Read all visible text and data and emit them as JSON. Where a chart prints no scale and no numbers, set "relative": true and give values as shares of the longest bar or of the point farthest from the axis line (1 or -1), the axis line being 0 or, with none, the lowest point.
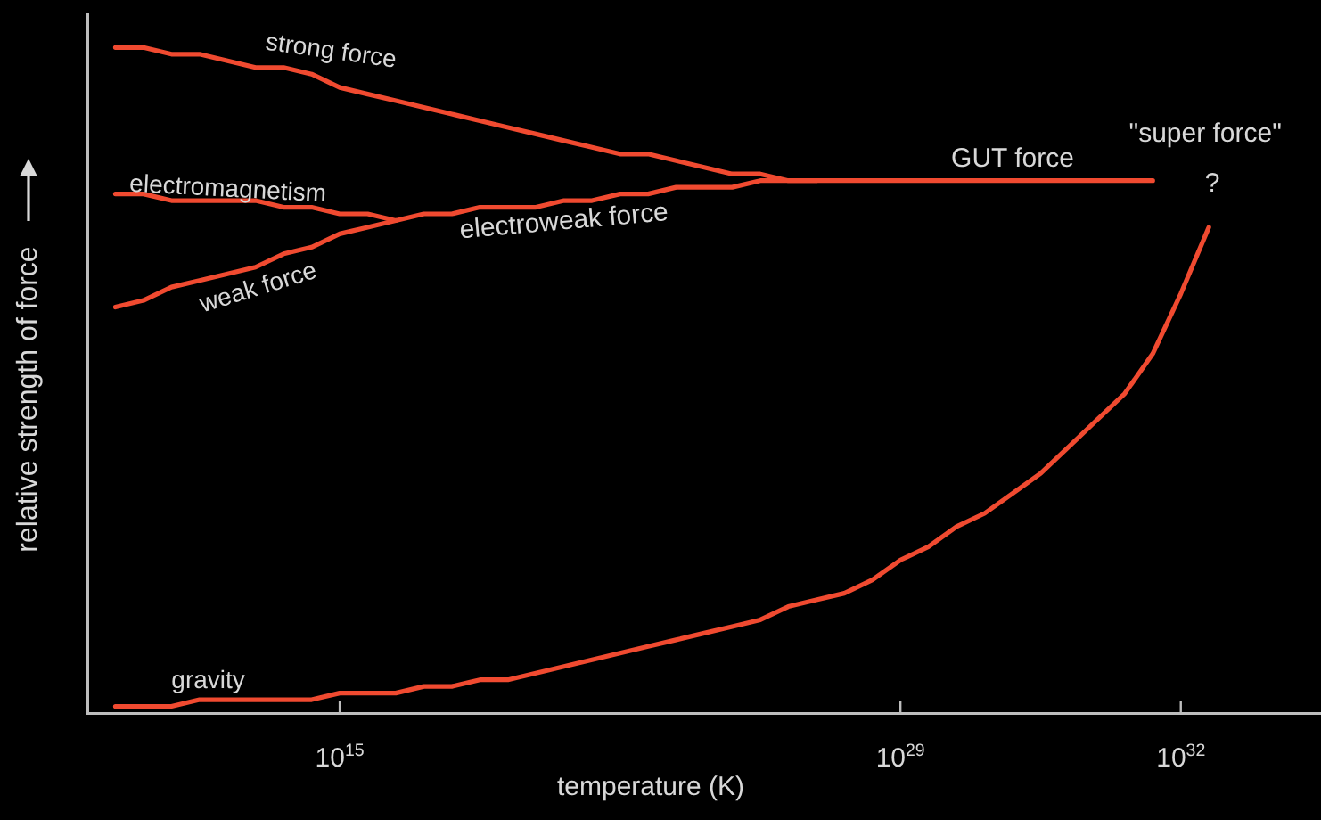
{
  "chart_data": {
    "type": "line",
    "relative": true,
    "xlabel": "temperature (K)",
    "ylabel": "relative strength of force",
    "legend": false,
    "grid": false,
    "tick_labels": "x",
    "categories": [
      null,
      null,
      null,
      null,
      null,
      null,
      null,
      null,
      null,
      "10$^{15}$",
      null,
      null,
      null,
      null,
      null,
      null,
      null,
      null,
      null,
      null,
      null,
      null,
      null,
      null,
      null,
      null,
      null,
      null,
      null,
      "10$^{29}$",
      null,
      null,
      null,
      null,
      null,
      null,
      null,
      null,
      null,
      "10$^{32}$",
      null,
      null,
      null,
      null,
      null
    ],
    "series": [
      {
        "name": "strong force",
        "color": "#f04a30",
        "values": [
          null,
          1.0,
          1.0,
          0.99,
          0.99,
          0.98,
          0.97,
          0.97,
          0.96,
          0.94,
          0.93,
          0.92,
          0.91,
          0.9,
          0.89,
          0.88,
          0.87,
          0.86,
          0.85,
          0.84,
          0.84,
          0.83,
          0.82,
          0.81,
          0.81,
          0.8,
          0.8,
          0.8,
          0.8,
          0.8,
          0.8,
          0.8,
          0.8,
          0.8,
          0.8,
          0.8,
          0.8,
          0.8,
          0.8,
          null,
          null,
          null,
          null,
          null,
          null
        ]
      },
      {
        "name": "electromagnetism",
        "color": "#f04a30",
        "values": [
          null,
          0.78,
          0.78,
          0.77,
          0.77,
          0.77,
          0.77,
          0.76,
          0.76,
          0.75,
          0.75,
          0.74,
          0.75,
          0.75,
          0.76,
          0.76,
          0.76,
          0.77,
          0.77,
          0.78,
          0.78,
          0.79,
          0.79,
          0.79,
          0.8,
          0.8,
          0.8,
          null,
          null,
          null,
          null,
          null,
          null,
          null,
          null,
          null,
          null,
          null,
          null,
          null,
          null,
          null,
          null,
          null,
          null
        ]
      },
      {
        "name": "weak force",
        "color": "#f04a30",
        "values": [
          null,
          0.61,
          0.62,
          0.64,
          0.65,
          0.66,
          0.67,
          0.69,
          0.7,
          0.72,
          0.73,
          0.74,
          null,
          null,
          null,
          null,
          null,
          null,
          null,
          null,
          null,
          null,
          null,
          null,
          null,
          null,
          null,
          null,
          null,
          null,
          null,
          null,
          null,
          null,
          null,
          null,
          null,
          null,
          null,
          null,
          null,
          null,
          null,
          null,
          null
        ]
      },
      {
        "name": "gravity",
        "color": "#f04a30",
        "values": [
          null,
          0.01,
          0.01,
          0.01,
          0.02,
          0.02,
          0.02,
          0.02,
          0.02,
          0.03,
          0.03,
          0.03,
          0.04,
          0.04,
          0.05,
          0.05,
          0.06,
          0.07,
          0.08,
          0.09,
          0.1,
          0.11,
          0.12,
          0.13,
          0.14,
          0.16,
          0.17,
          0.18,
          0.2,
          0.23,
          0.25,
          0.28,
          0.3,
          0.33,
          0.36,
          0.4,
          0.44,
          0.48,
          0.54,
          0.63,
          0.73,
          null,
          null,
          null,
          null
        ]
      }
    ],
    "annotations": [
      "electroweak force",
      "GUT force",
      "\"super force\"",
      "?"
    ]
  }
}
